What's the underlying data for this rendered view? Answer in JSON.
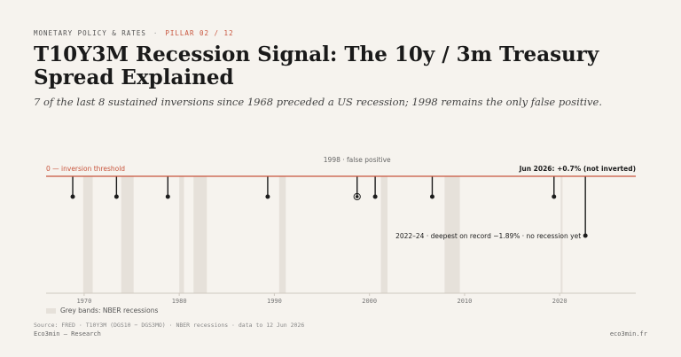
{
  "header": {
    "section": "MONETARY POLICY & RATES",
    "separator": "·",
    "pillar": "PILLAR 02 / 12",
    "title": "T10Y3M Recession Signal: The 10y / 3m Treasury Spread Explained",
    "subtitle": "7 of the last 8 sustained inversions since 1968 preceded a US recession; 1998 remains the only false positive."
  },
  "colors": {
    "background": "#f6f3ee",
    "threshold": "#c8553d",
    "recession_band": "#e6e1da",
    "marker": "#1c1c1c",
    "axis": "#cfc9c0"
  },
  "chart_data": {
    "type": "timeline",
    "x_range": [
      1966,
      2028
    ],
    "x_ticks": [
      1970,
      1980,
      1990,
      2000,
      2010,
      2020
    ],
    "threshold_label": "0 — inversion threshold",
    "recessions": [
      {
        "start": 1969.9,
        "end": 1970.9
      },
      {
        "start": 1973.9,
        "end": 1975.2
      },
      {
        "start": 1980.0,
        "end": 1980.5
      },
      {
        "start": 1981.5,
        "end": 1982.9
      },
      {
        "start": 1990.5,
        "end": 1991.2
      },
      {
        "start": 2001.2,
        "end": 2001.9
      },
      {
        "start": 2007.9,
        "end": 2009.5
      },
      {
        "start": 2020.1,
        "end": 2020.3
      }
    ],
    "inversions": [
      {
        "year": 1968.8,
        "type": "preceded_recession"
      },
      {
        "year": 1973.4,
        "type": "preceded_recession"
      },
      {
        "year": 1978.8,
        "type": "preceded_recession"
      },
      {
        "year": 1989.3,
        "type": "preceded_recession"
      },
      {
        "year": 1998.7,
        "type": "false_positive"
      },
      {
        "year": 2000.6,
        "type": "preceded_recession"
      },
      {
        "year": 2006.6,
        "type": "preceded_recession"
      },
      {
        "year": 2019.4,
        "type": "preceded_recession"
      },
      {
        "year": 2022.7,
        "type": "no_recession_yet"
      }
    ],
    "annotations": {
      "false_positive": "1998 · false positive",
      "deepest": "2022–24 · deepest on record −1.89% · no recession yet",
      "latest": "Jun 2026: +0.7% (not inverted)"
    },
    "legend": "Grey bands: NBER recessions"
  },
  "footer": {
    "source": "Source: FRED · T10Y3M (DGS10 − DGS3MO) · NBER recessions · data to 12 Jun 2026",
    "brand": "Eco3min — Research",
    "site": "eco3min.fr"
  }
}
